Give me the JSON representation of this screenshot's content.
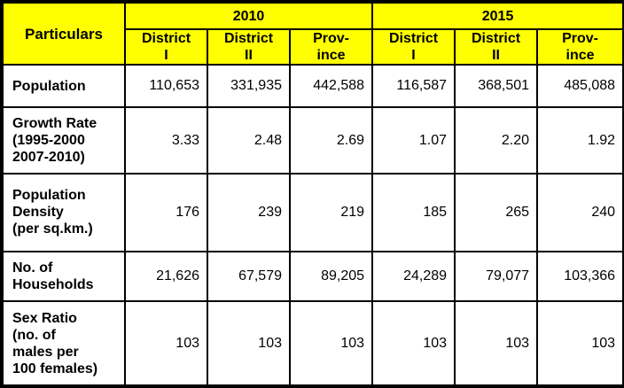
{
  "table": {
    "corner_header": "Particulars",
    "years": [
      "2010",
      "2015"
    ],
    "sub_headers": [
      "District\nI",
      "District\nII",
      "Prov-\nince",
      "District\nI",
      "District\nII",
      "Prov-\nince"
    ],
    "rows": [
      {
        "label": "Population",
        "values": [
          "110,653",
          "331,935",
          "442,588",
          "116,587",
          "368,501",
          "485,088"
        ]
      },
      {
        "label": "Growth Rate\n(1995-2000\n2007-2010)",
        "values": [
          "3.33",
          "2.48",
          "2.69",
          "1.07",
          "2.20",
          "1.92"
        ]
      },
      {
        "label": "Population\nDensity\n(per sq.km.)",
        "values": [
          "176",
          "239",
          "219",
          "185",
          "265",
          "240"
        ]
      },
      {
        "label": "No. of\nHouseholds",
        "values": [
          "21,626",
          "67,579",
          "89,205",
          "24,289",
          "79,077",
          "103,366"
        ]
      },
      {
        "label": "Sex Ratio\n(no. of\nmales per\n100 females)",
        "values": [
          "103",
          "103",
          "103",
          "103",
          "103",
          "103"
        ]
      }
    ]
  },
  "colors": {
    "header_bg": "#ffff00",
    "border": "#000000",
    "cell_bg": "#ffffff"
  }
}
